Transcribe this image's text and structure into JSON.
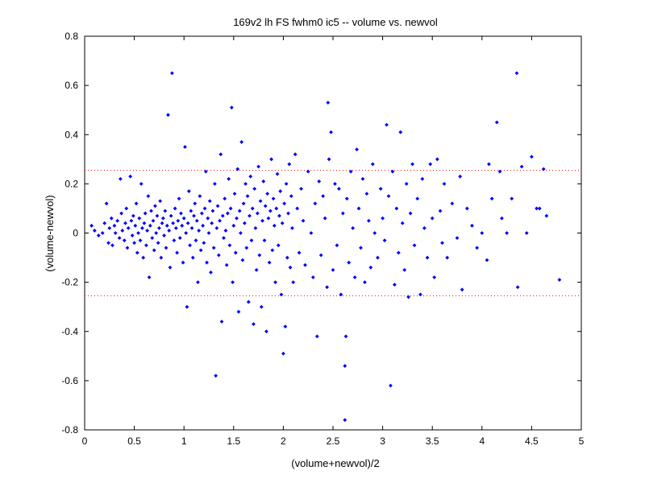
{
  "chart_data": {
    "type": "scatter",
    "title": "169v2 lh FS fwhm0 ic5 -- volume vs. newvol",
    "xlabel": "(volume+newvol)/2",
    "ylabel": "(volume-newvol)",
    "xlim": [
      0,
      5
    ],
    "ylim": [
      -0.8,
      0.8
    ],
    "x_ticks": [
      "0",
      "0.5",
      "1",
      "1.5",
      "2",
      "2.5",
      "3",
      "3.5",
      "4",
      "4.5",
      "5"
    ],
    "y_ticks": [
      "-0.8",
      "-0.6",
      "-0.4",
      "-0.2",
      "0",
      "0.2",
      "0.4",
      "0.6",
      "0.8"
    ],
    "grid": false,
    "marker_color": "#0000ff",
    "reference_lines": [
      {
        "y": 0.255,
        "color": "#ff0000",
        "style": "dotted"
      },
      {
        "y": -0.255,
        "color": "#ff0000",
        "style": "dotted"
      }
    ],
    "series": [
      {
        "points": [
          [
            0.07,
            0.03
          ],
          [
            0.1,
            0.01
          ],
          [
            0.14,
            -0.01
          ],
          [
            0.18,
            0.0
          ],
          [
            0.2,
            0.04
          ],
          [
            0.22,
            0.12
          ],
          [
            0.24,
            -0.04
          ],
          [
            0.25,
            0.02
          ],
          [
            0.27,
            0.06
          ],
          [
            0.28,
            -0.05
          ],
          [
            0.3,
            0.03
          ],
          [
            0.31,
            0.0
          ],
          [
            0.33,
            0.05
          ],
          [
            0.35,
            -0.02
          ],
          [
            0.36,
            0.22
          ],
          [
            0.37,
            0.08
          ],
          [
            0.38,
            0.01
          ],
          [
            0.4,
            -0.03
          ],
          [
            0.41,
            0.04
          ],
          [
            0.42,
            0.1
          ],
          [
            0.43,
            -0.06
          ],
          [
            0.44,
            0.02
          ],
          [
            0.46,
            0.23
          ],
          [
            0.47,
            0.05
          ],
          [
            0.48,
            -0.01
          ],
          [
            0.49,
            0.07
          ],
          [
            0.5,
            -0.04
          ],
          [
            0.51,
            0.03
          ],
          [
            0.52,
            0.12
          ],
          [
            0.53,
            -0.08
          ],
          [
            0.54,
            0.0
          ],
          [
            0.55,
            0.06
          ],
          [
            0.56,
            -0.03
          ],
          [
            0.57,
            0.2
          ],
          [
            0.58,
            0.02
          ],
          [
            0.59,
            -0.1
          ],
          [
            0.6,
            0.04
          ],
          [
            0.61,
            0.08
          ],
          [
            0.62,
            -0.05
          ],
          [
            0.63,
            0.01
          ],
          [
            0.64,
            0.15
          ],
          [
            0.65,
            -0.18
          ],
          [
            0.66,
            0.03
          ],
          [
            0.67,
            0.09
          ],
          [
            0.68,
            -0.02
          ],
          [
            0.69,
            0.05
          ],
          [
            0.7,
            -0.07
          ],
          [
            0.71,
            0.11
          ],
          [
            0.72,
            0.0
          ],
          [
            0.73,
            0.07
          ],
          [
            0.74,
            -0.04
          ],
          [
            0.75,
            0.02
          ],
          [
            0.76,
            0.13
          ],
          [
            0.77,
            -0.1
          ],
          [
            0.78,
            0.04
          ],
          [
            0.79,
            0.06
          ],
          [
            0.8,
            -0.01
          ],
          [
            0.81,
            0.09
          ],
          [
            0.82,
            -0.06
          ],
          [
            0.83,
            0.03
          ],
          [
            0.84,
            0.48
          ],
          [
            0.85,
            0.01
          ],
          [
            0.86,
            -0.14
          ],
          [
            0.87,
            0.07
          ],
          [
            0.88,
            0.65
          ],
          [
            0.89,
            0.04
          ],
          [
            0.9,
            -0.03
          ],
          [
            0.91,
            0.1
          ],
          [
            0.92,
            0.02
          ],
          [
            0.93,
            -0.08
          ],
          [
            0.94,
            0.05
          ],
          [
            0.95,
            0.14
          ],
          [
            0.96,
            -0.02
          ],
          [
            0.97,
            0.08
          ],
          [
            0.98,
            0.03
          ],
          [
            0.99,
            -0.12
          ],
          [
            1.0,
            0.06
          ],
          [
            1.01,
            0.35
          ],
          [
            1.02,
            0.0
          ],
          [
            1.03,
            -0.3
          ],
          [
            1.04,
            0.04
          ],
          [
            1.05,
            0.17
          ],
          [
            1.06,
            -0.05
          ],
          [
            1.07,
            0.09
          ],
          [
            1.08,
            0.02
          ],
          [
            1.09,
            -0.1
          ],
          [
            1.1,
            0.07
          ],
          [
            1.11,
            0.12
          ],
          [
            1.12,
            -0.03
          ],
          [
            1.13,
            0.05
          ],
          [
            1.14,
            -0.2
          ],
          [
            1.15,
            0.01
          ],
          [
            1.16,
            0.15
          ],
          [
            1.17,
            -0.07
          ],
          [
            1.18,
            0.08
          ],
          [
            1.19,
            0.03
          ],
          [
            1.2,
            -0.04
          ],
          [
            1.21,
            0.1
          ],
          [
            1.22,
            0.25
          ],
          [
            1.23,
            -0.12
          ],
          [
            1.24,
            0.06
          ],
          [
            1.25,
            0.0
          ],
          [
            1.26,
            0.13
          ],
          [
            1.27,
            -0.16
          ],
          [
            1.28,
            0.04
          ],
          [
            1.29,
            0.09
          ],
          [
            1.3,
            -0.06
          ],
          [
            1.31,
            0.2
          ],
          [
            1.32,
            -0.58
          ],
          [
            1.33,
            0.02
          ],
          [
            1.34,
            0.11
          ],
          [
            1.35,
            -0.09
          ],
          [
            1.36,
            0.05
          ],
          [
            1.37,
            0.32
          ],
          [
            1.38,
            -0.36
          ],
          [
            1.39,
            0.07
          ],
          [
            1.4,
            -0.02
          ],
          [
            1.41,
            0.14
          ],
          [
            1.42,
            0.01
          ],
          [
            1.43,
            -0.13
          ],
          [
            1.44,
            0.08
          ],
          [
            1.45,
            0.22
          ],
          [
            1.46,
            -0.05
          ],
          [
            1.47,
            0.1
          ],
          [
            1.48,
            0.51
          ],
          [
            1.49,
            -0.2
          ],
          [
            1.5,
            0.03
          ],
          [
            1.51,
            0.16
          ],
          [
            1.52,
            -0.08
          ],
          [
            1.53,
            0.06
          ],
          [
            1.54,
            0.26
          ],
          [
            1.55,
            -0.32
          ],
          [
            1.56,
            0.09
          ],
          [
            1.57,
            0.0
          ],
          [
            1.58,
            0.37
          ],
          [
            1.59,
            -0.11
          ],
          [
            1.6,
            0.12
          ],
          [
            1.61,
            0.04
          ],
          [
            1.62,
            0.2
          ],
          [
            1.63,
            -0.06
          ],
          [
            1.64,
            0.15
          ],
          [
            1.65,
            -0.28
          ],
          [
            1.66,
            0.07
          ],
          [
            1.67,
            0.23
          ],
          [
            1.68,
            -0.03
          ],
          [
            1.69,
            0.1
          ],
          [
            1.7,
            -0.37
          ],
          [
            1.71,
            0.18
          ],
          [
            1.72,
            0.02
          ],
          [
            1.73,
            -0.15
          ],
          [
            1.74,
            0.08
          ],
          [
            1.75,
            0.27
          ],
          [
            1.76,
            -0.09
          ],
          [
            1.77,
            0.13
          ],
          [
            1.78,
            -0.3
          ],
          [
            1.79,
            0.05
          ],
          [
            1.8,
            0.21
          ],
          [
            1.81,
            -0.03
          ],
          [
            1.82,
            0.11
          ],
          [
            1.83,
            -0.4
          ],
          [
            1.84,
            0.16
          ],
          [
            1.85,
            0.06
          ],
          [
            1.86,
            -0.12
          ],
          [
            1.87,
            0.09
          ],
          [
            1.88,
            0.3
          ],
          [
            1.89,
            -0.07
          ],
          [
            1.9,
            0.14
          ],
          [
            1.91,
            0.03
          ],
          [
            1.92,
            -0.2
          ],
          [
            1.93,
            0.1
          ],
          [
            1.94,
            0.24
          ],
          [
            1.95,
            -0.05
          ],
          [
            1.96,
            0.07
          ],
          [
            1.97,
            0.17
          ],
          [
            1.98,
            -0.25
          ],
          [
            1.99,
            0.04
          ],
          [
            2.0,
            -0.49
          ],
          [
            2.01,
            0.12
          ],
          [
            2.02,
            -0.38
          ],
          [
            2.03,
            0.2
          ],
          [
            2.04,
            -0.1
          ],
          [
            2.05,
            0.08
          ],
          [
            2.06,
            0.28
          ],
          [
            2.07,
            -0.14
          ],
          [
            2.08,
            0.15
          ],
          [
            2.09,
            0.02
          ],
          [
            2.1,
            -0.2
          ],
          [
            2.12,
            0.32
          ],
          [
            2.14,
            0.1
          ],
          [
            2.16,
            -0.08
          ],
          [
            2.18,
            0.18
          ],
          [
            2.2,
            0.05
          ],
          [
            2.22,
            -0.13
          ],
          [
            2.25,
            0.25
          ],
          [
            2.28,
            0.0
          ],
          [
            2.3,
            -0.18
          ],
          [
            2.32,
            0.12
          ],
          [
            2.34,
            -0.42
          ],
          [
            2.36,
            0.21
          ],
          [
            2.38,
            -0.09
          ],
          [
            2.4,
            0.15
          ],
          [
            2.42,
            0.06
          ],
          [
            2.44,
            -0.22
          ],
          [
            2.45,
            0.53
          ],
          [
            2.46,
            0.3
          ],
          [
            2.48,
            0.41
          ],
          [
            2.5,
            -0.15
          ],
          [
            2.52,
            0.2
          ],
          [
            2.54,
            -0.05
          ],
          [
            2.56,
            0.18
          ],
          [
            2.58,
            -0.25
          ],
          [
            2.6,
            0.08
          ],
          [
            2.62,
            -0.54
          ],
          [
            2.63,
            -0.42
          ],
          [
            2.62,
            -0.76
          ],
          [
            2.64,
            0.14
          ],
          [
            2.66,
            -0.12
          ],
          [
            2.68,
            0.25
          ],
          [
            2.7,
            0.02
          ],
          [
            2.72,
            -0.18
          ],
          [
            2.74,
            0.34
          ],
          [
            2.76,
            0.1
          ],
          [
            2.78,
            -0.06
          ],
          [
            2.8,
            0.22
          ],
          [
            2.82,
            -0.2
          ],
          [
            2.84,
            0.16
          ],
          [
            2.86,
            0.05
          ],
          [
            2.88,
            -0.14
          ],
          [
            2.9,
            0.28
          ],
          [
            2.92,
            0.0
          ],
          [
            2.95,
            -0.1
          ],
          [
            2.98,
            0.18
          ],
          [
            3.0,
            0.06
          ],
          [
            3.02,
            -0.03
          ],
          [
            3.04,
            0.44
          ],
          [
            3.06,
            0.15
          ],
          [
            3.08,
            -0.62
          ],
          [
            3.1,
            0.25
          ],
          [
            3.12,
            -0.21
          ],
          [
            3.14,
            0.1
          ],
          [
            3.16,
            -0.08
          ],
          [
            3.18,
            0.41
          ],
          [
            3.2,
            0.04
          ],
          [
            3.22,
            -0.15
          ],
          [
            3.24,
            0.2
          ],
          [
            3.26,
            -0.26
          ],
          [
            3.28,
            0.08
          ],
          [
            3.3,
            0.28
          ],
          [
            3.32,
            -0.05
          ],
          [
            3.35,
            0.14
          ],
          [
            3.38,
            -0.25
          ],
          [
            3.4,
            0.22
          ],
          [
            3.42,
            0.02
          ],
          [
            3.45,
            -0.1
          ],
          [
            3.48,
            0.28
          ],
          [
            3.5,
            0.06
          ],
          [
            3.52,
            -0.18
          ],
          [
            3.55,
            0.3
          ],
          [
            3.58,
            0.09
          ],
          [
            3.6,
            -0.04
          ],
          [
            3.62,
            0.2
          ],
          [
            3.65,
            -0.1
          ],
          [
            3.7,
            0.12
          ],
          [
            3.75,
            -0.02
          ],
          [
            3.78,
            0.23
          ],
          [
            3.8,
            -0.23
          ],
          [
            3.85,
            0.1
          ],
          [
            3.9,
            0.03
          ],
          [
            3.95,
            -0.06
          ],
          [
            4.0,
            0.0
          ],
          [
            4.05,
            -0.11
          ],
          [
            4.07,
            0.28
          ],
          [
            4.1,
            0.14
          ],
          [
            4.15,
            0.45
          ],
          [
            4.18,
            0.25
          ],
          [
            4.2,
            0.06
          ],
          [
            4.25,
            0.0
          ],
          [
            4.3,
            0.14
          ],
          [
            4.35,
            0.65
          ],
          [
            4.36,
            -0.22
          ],
          [
            4.4,
            0.27
          ],
          [
            4.45,
            0.0
          ],
          [
            4.5,
            0.31
          ],
          [
            4.55,
            0.1
          ],
          [
            4.58,
            0.1
          ],
          [
            4.62,
            0.26
          ],
          [
            4.65,
            0.07
          ],
          [
            4.78,
            -0.19
          ]
        ]
      }
    ]
  }
}
